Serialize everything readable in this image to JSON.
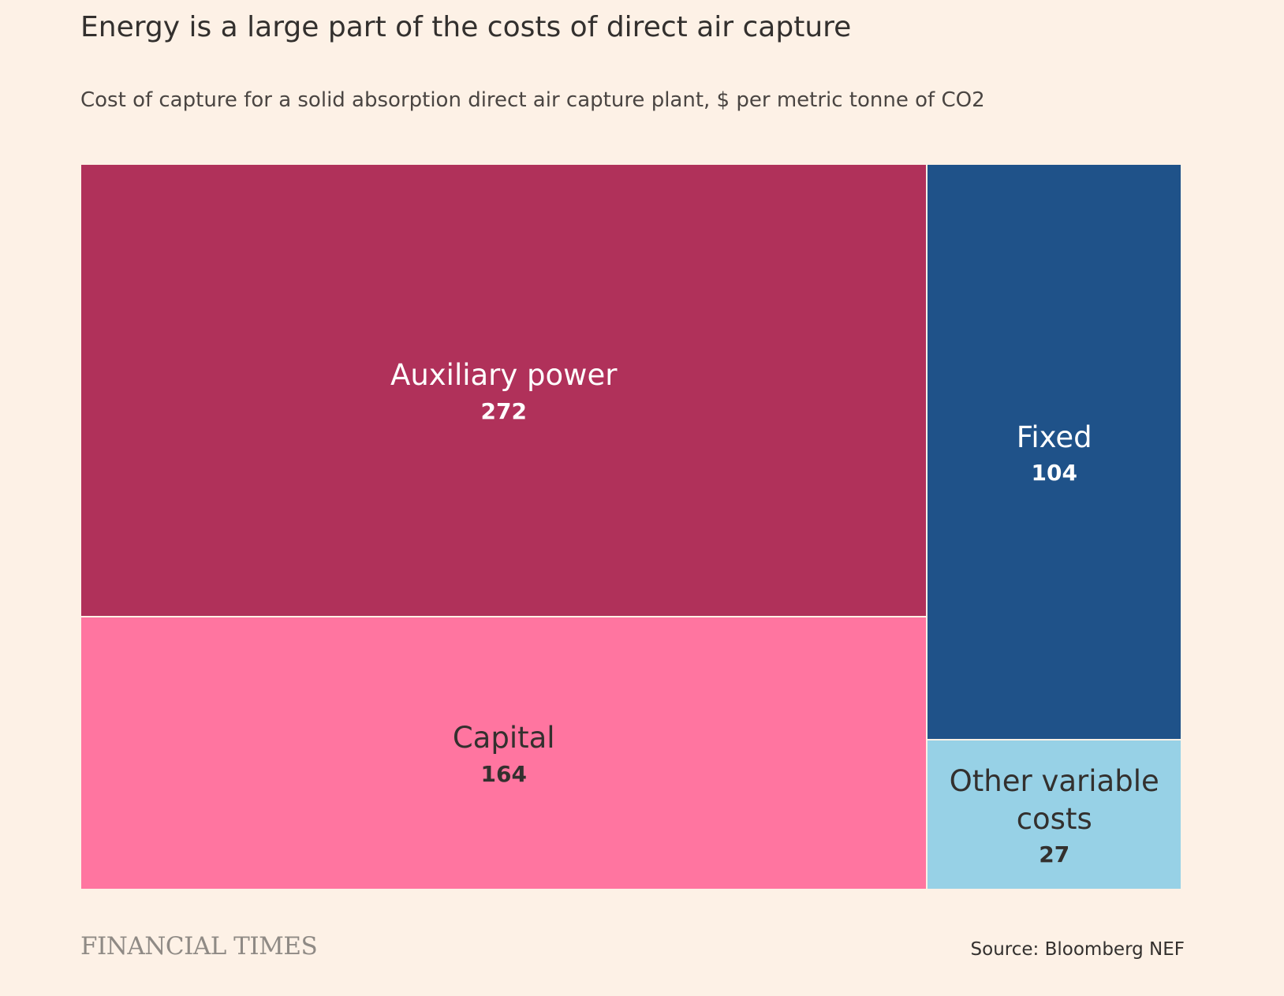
{
  "chart_data": {
    "type": "treemap",
    "title": "Energy is a large part of the costs of direct air capture",
    "subtitle": "Cost of capture for a solid absorption direct air capture plant, $ per metric tonne of CO2",
    "categories": [
      "Auxiliary power",
      "Capital",
      "Fixed",
      "Other variable costs"
    ],
    "values": [
      272,
      164,
      104,
      27
    ],
    "colors": [
      "#b0315a",
      "#ff75a0",
      "#1f5289",
      "#97d1e6"
    ],
    "source": "Source: Bloomberg NEF",
    "brand": "FINANCIAL TIMES"
  }
}
